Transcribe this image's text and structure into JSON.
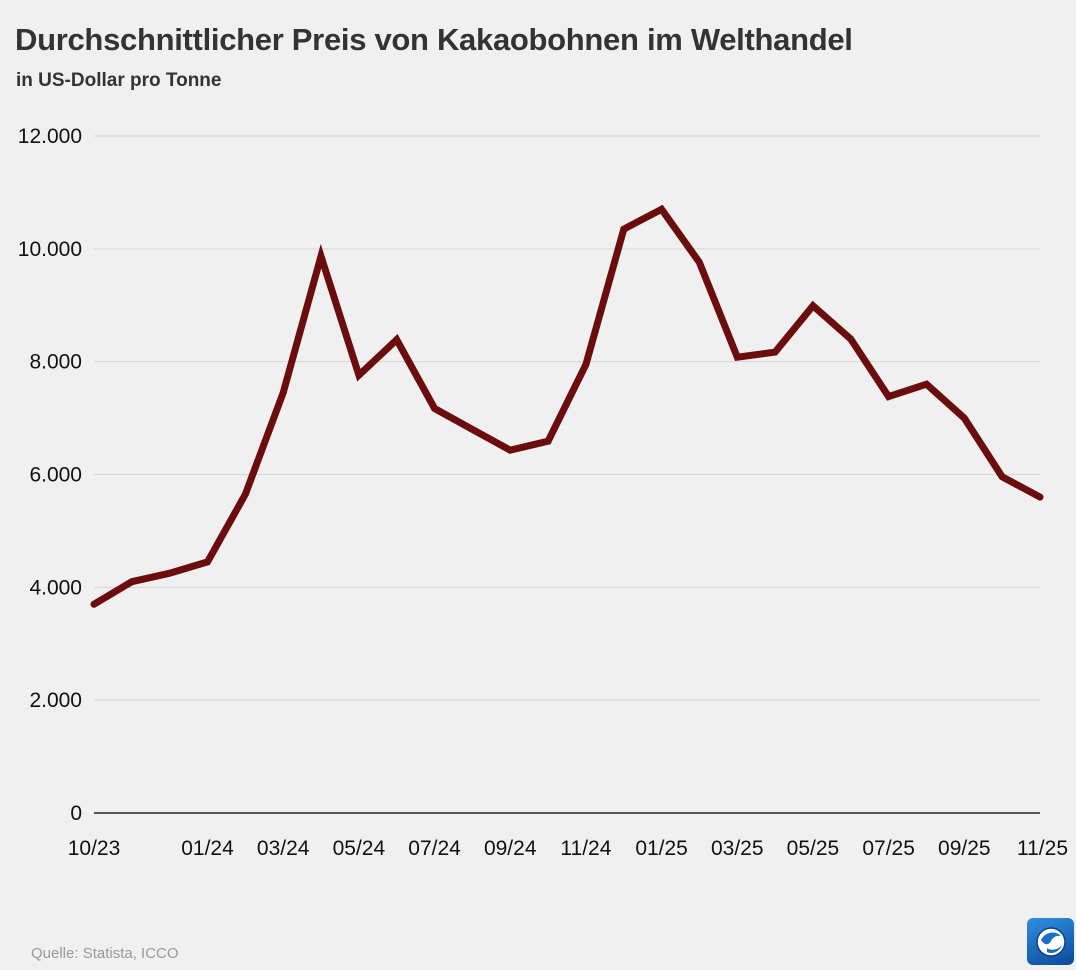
{
  "header": {
    "title": "Durchschnittlicher Preis von Kakaobohnen im Welthandel",
    "subtitle": "in US-Dollar pro Tonne"
  },
  "footer": {
    "source": "Quelle: Statista, ICCO",
    "logo_icon": "tagesschau-globe-icon"
  },
  "colors": {
    "background": "#f0f0f0",
    "line": "#6b0d0d",
    "grid": "#d6d6d6",
    "axis": "#222222"
  },
  "chart_data": {
    "type": "line",
    "title": "Durchschnittlicher Preis von Kakaobohnen im Welthandel",
    "subtitle": "in US-Dollar pro Tonne",
    "xlabel": "",
    "ylabel": "",
    "x": [
      "10/23",
      "11/23",
      "12/23",
      "01/24",
      "02/24",
      "03/24",
      "04/24",
      "05/24",
      "06/24",
      "07/24",
      "08/24",
      "09/24",
      "10/24",
      "11/24",
      "12/24",
      "01/25",
      "02/25",
      "03/25",
      "04/25",
      "05/25",
      "06/25",
      "07/25",
      "08/25",
      "09/25",
      "10/25",
      "11/25"
    ],
    "x_tick_labels": [
      "10/23",
      "",
      "",
      "01/24",
      "",
      "03/24",
      "",
      "05/24",
      "",
      "07/24",
      "",
      "09/24",
      "",
      "11/24",
      "",
      "01/25",
      "",
      "03/25",
      "",
      "05/25",
      "",
      "07/25",
      "",
      "09/25",
      "",
      "11/25"
    ],
    "series": [
      {
        "name": "Preis",
        "values": [
          3700,
          4100,
          4250,
          4450,
          5650,
          7450,
          9870,
          7760,
          8390,
          7170,
          6800,
          6430,
          6590,
          7950,
          10350,
          10700,
          9760,
          8080,
          8170,
          8990,
          8400,
          7380,
          7600,
          7000,
          5960,
          5600
        ]
      }
    ],
    "ylim": [
      0,
      12000
    ],
    "y_ticks": [
      0,
      2000,
      4000,
      6000,
      8000,
      10000,
      12000
    ],
    "y_tick_labels": [
      "0",
      "2.000",
      "4.000",
      "6.000",
      "8.000",
      "10.000",
      "12.000"
    ],
    "grid": true,
    "legend": "none"
  }
}
